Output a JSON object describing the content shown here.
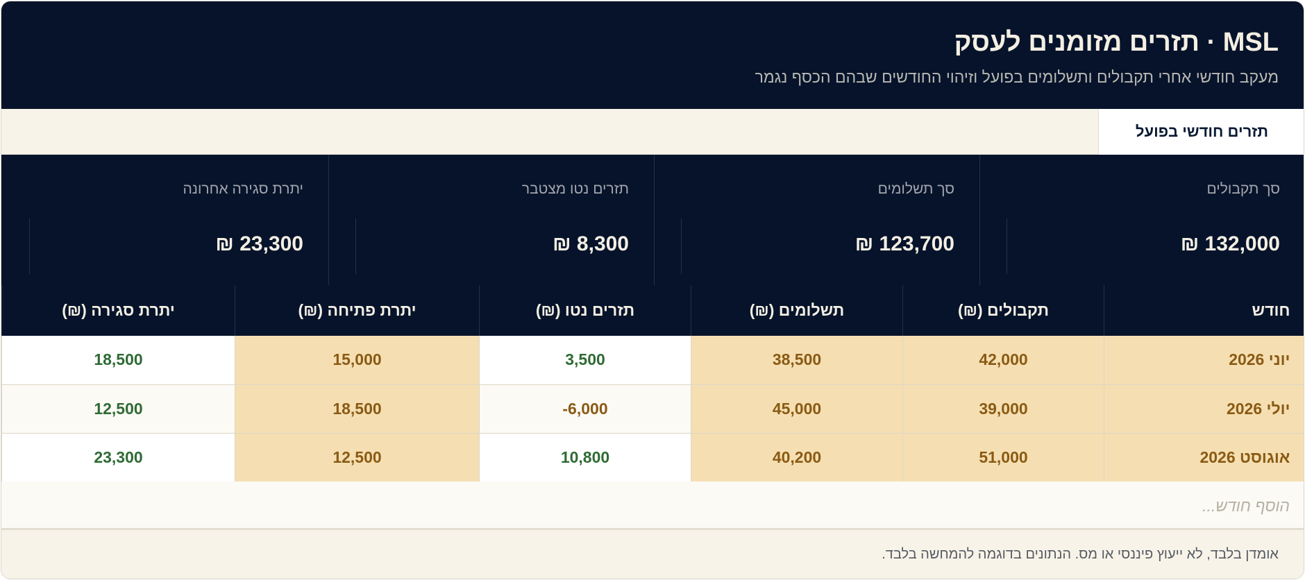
{
  "header": {
    "title": "MSL · תזרים מזומנים לעסק",
    "subtitle": "מעקב חודשי אחרי תקבולים ותשלומים בפועל וזיהוי החודשים שבהם הכסף נגמר"
  },
  "tabs": [
    {
      "label": "תזרים חודשי בפועל",
      "active": true
    }
  ],
  "summary": [
    {
      "label": "סך תקבולים",
      "value": "132,000 ₪"
    },
    {
      "label": "סך תשלומים",
      "value": "123,700 ₪"
    },
    {
      "label": "תזרים נטו מצטבר",
      "value": "8,300 ₪"
    },
    {
      "label": "יתרת סגירה אחרונה",
      "value": "23,300 ₪"
    }
  ],
  "table": {
    "columns": [
      "חודש",
      "תקבולים (₪)",
      "תשלומים (₪)",
      "תזרים נטו (₪)",
      "יתרת פתיחה (₪)",
      "יתרת סגירה (₪)"
    ],
    "rows": [
      {
        "month": "יוני 2026",
        "receipts": "42,000",
        "payments": "38,500",
        "net": "3,500",
        "opening": "15,000",
        "closing": "18,500"
      },
      {
        "month": "יולי 2026",
        "receipts": "39,000",
        "payments": "45,000",
        "net": "-6,000",
        "opening": "18,500",
        "closing": "12,500"
      },
      {
        "month": "אוגוסט 2026",
        "receipts": "51,000",
        "payments": "40,200",
        "net": "10,800",
        "opening": "12,500",
        "closing": "23,300"
      }
    ],
    "add_placeholder": "הוסף חודש..."
  },
  "footer": {
    "disclaimer": "אומדן בלבד, לא ייעוץ פיננסי או מס. הנתונים בדוגמה להמחשה בלבד."
  },
  "colors": {
    "navy": "#06132b",
    "cream": "#f4efe3",
    "highlight": "#f5dfb2",
    "positive": "#2f6b35",
    "negative": "#8a5a14"
  }
}
